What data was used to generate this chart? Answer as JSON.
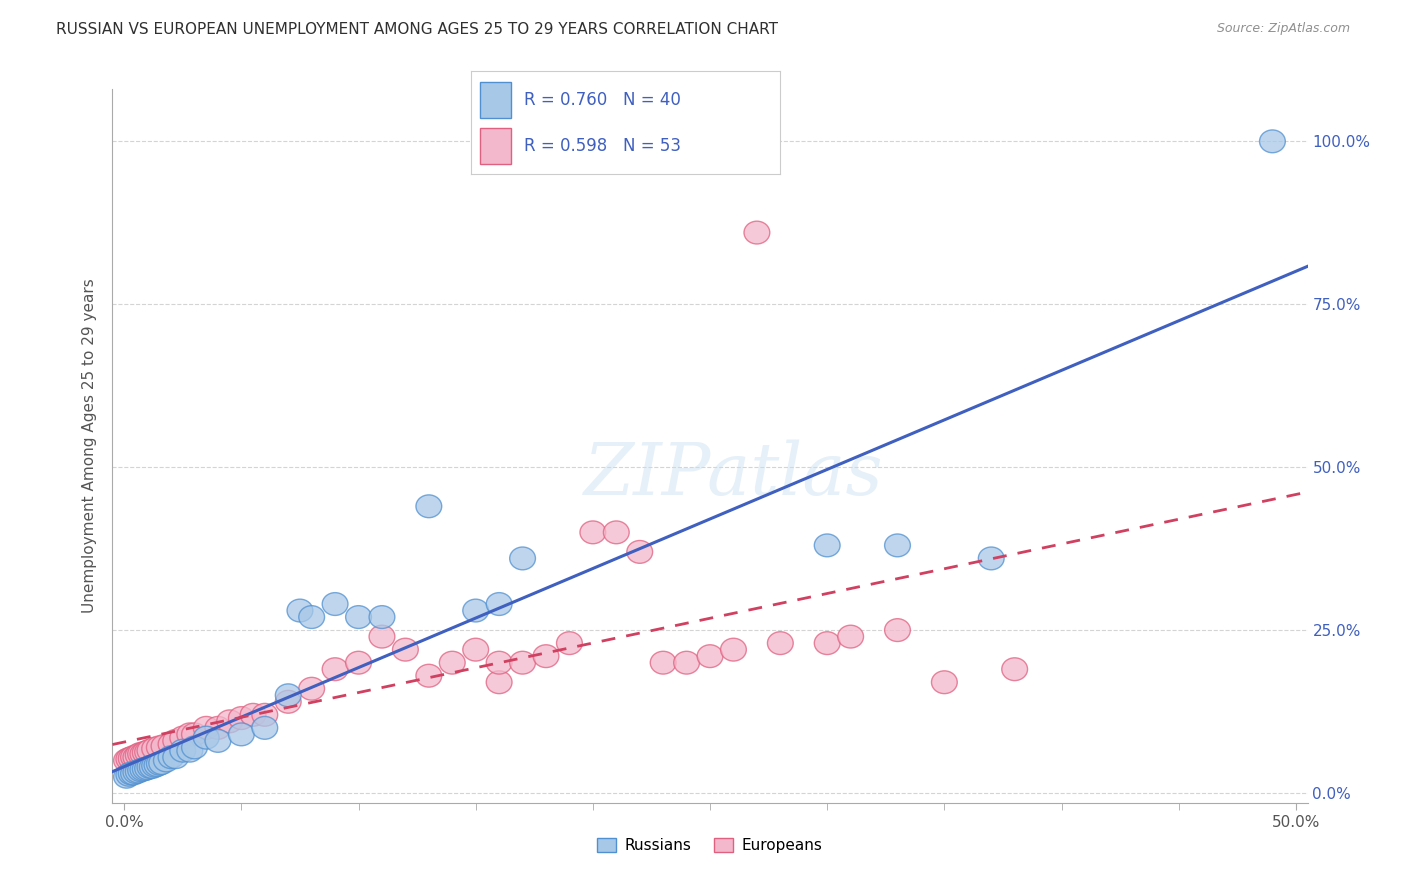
{
  "title": "RUSSIAN VS EUROPEAN UNEMPLOYMENT AMONG AGES 25 TO 29 YEARS CORRELATION CHART",
  "source": "Source: ZipAtlas.com",
  "ylabel": "Unemployment Among Ages 25 to 29 years",
  "xlim": [
    -0.005,
    0.505
  ],
  "ylim": [
    -0.015,
    1.08
  ],
  "xtick_positions": [
    0.0,
    0.5
  ],
  "xticklabels": [
    "0.0%",
    "50.0%"
  ],
  "ytick_positions": [
    0.0,
    0.25,
    0.5,
    0.75,
    1.0
  ],
  "yticklabels_right": [
    "0.0%",
    "25.0%",
    "50.0%",
    "75.0%",
    "100.0%"
  ],
  "russian_fill": "#a8c8e8",
  "european_fill": "#f4b8cc",
  "russian_edge": "#5090d0",
  "european_edge": "#e06080",
  "russian_R": "0.760",
  "russian_N": "40",
  "european_R": "0.598",
  "european_N": "53",
  "legend_label1": "Russians",
  "legend_label2": "Europeans",
  "watermark": "ZIPatlas",
  "background_color": "#ffffff",
  "grid_color": "#d0d0d0",
  "russian_line_color": "#4060c0",
  "european_line_color": "#d04060",
  "title_color": "#303030",
  "source_color": "#909090",
  "russians_x": [
    0.001,
    0.002,
    0.003,
    0.004,
    0.005,
    0.006,
    0.007,
    0.008,
    0.009,
    0.01,
    0.011,
    0.012,
    0.013,
    0.014,
    0.015,
    0.016,
    0.018,
    0.02,
    0.022,
    0.025,
    0.028,
    0.03,
    0.035,
    0.04,
    0.05,
    0.06,
    0.07,
    0.075,
    0.08,
    0.09,
    0.1,
    0.11,
    0.13,
    0.15,
    0.16,
    0.17,
    0.3,
    0.33,
    0.37,
    0.49
  ],
  "russians_y": [
    0.025,
    0.028,
    0.03,
    0.03,
    0.032,
    0.033,
    0.035,
    0.036,
    0.037,
    0.038,
    0.04,
    0.04,
    0.042,
    0.043,
    0.045,
    0.046,
    0.05,
    0.055,
    0.055,
    0.065,
    0.065,
    0.07,
    0.085,
    0.08,
    0.09,
    0.1,
    0.15,
    0.28,
    0.27,
    0.29,
    0.27,
    0.27,
    0.44,
    0.28,
    0.29,
    0.36,
    0.38,
    0.38,
    0.36,
    1.0
  ],
  "europeans_x": [
    0.001,
    0.002,
    0.003,
    0.004,
    0.005,
    0.006,
    0.007,
    0.008,
    0.009,
    0.01,
    0.011,
    0.013,
    0.015,
    0.017,
    0.02,
    0.022,
    0.025,
    0.028,
    0.03,
    0.035,
    0.04,
    0.045,
    0.05,
    0.055,
    0.06,
    0.07,
    0.08,
    0.09,
    0.1,
    0.11,
    0.12,
    0.13,
    0.14,
    0.15,
    0.16,
    0.16,
    0.17,
    0.18,
    0.19,
    0.2,
    0.21,
    0.22,
    0.23,
    0.24,
    0.25,
    0.26,
    0.28,
    0.3,
    0.31,
    0.33,
    0.35,
    0.38,
    0.27
  ],
  "europeans_y": [
    0.05,
    0.052,
    0.053,
    0.055,
    0.055,
    0.058,
    0.06,
    0.06,
    0.062,
    0.063,
    0.065,
    0.068,
    0.07,
    0.072,
    0.075,
    0.08,
    0.085,
    0.09,
    0.09,
    0.1,
    0.1,
    0.11,
    0.115,
    0.12,
    0.12,
    0.14,
    0.16,
    0.19,
    0.2,
    0.24,
    0.22,
    0.18,
    0.2,
    0.22,
    0.17,
    0.2,
    0.2,
    0.21,
    0.23,
    0.4,
    0.4,
    0.37,
    0.2,
    0.2,
    0.21,
    0.22,
    0.23,
    0.23,
    0.24,
    0.25,
    0.17,
    0.19,
    0.86
  ]
}
